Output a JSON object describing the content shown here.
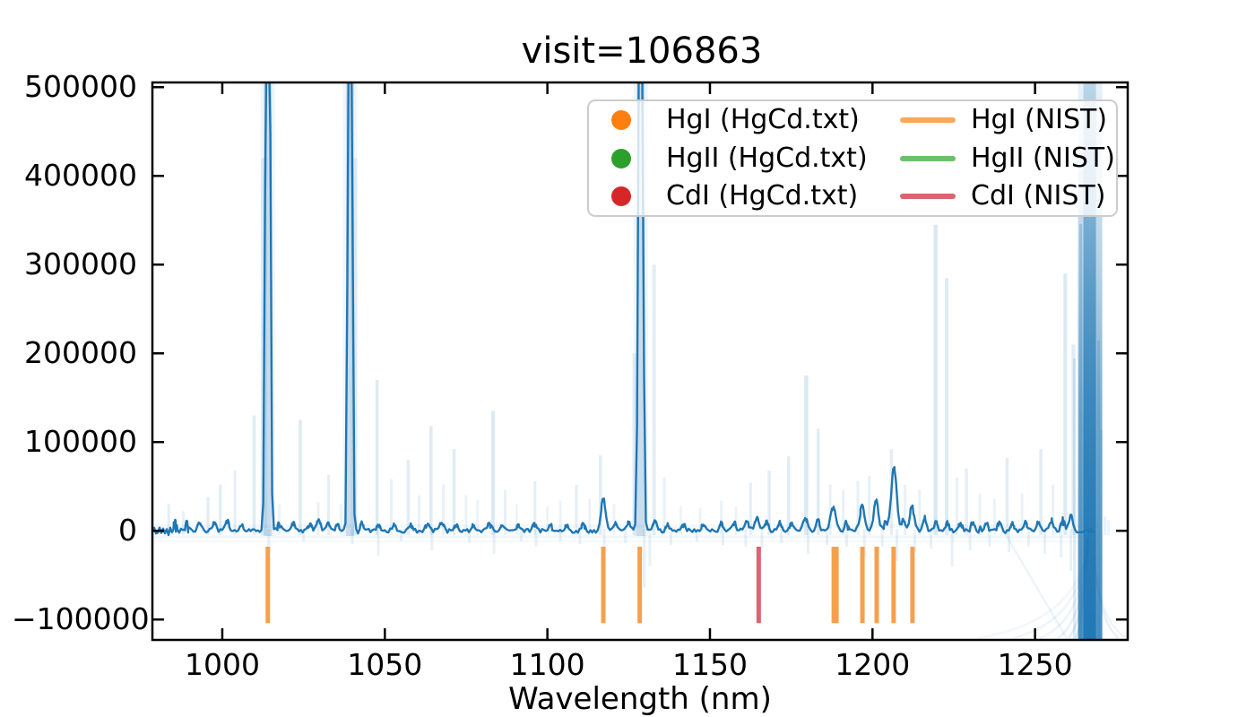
{
  "figure": {
    "kind": "matplotlib-style spectral plot",
    "background": "#ffffff"
  },
  "chart_data": {
    "type": "line",
    "title": "visit=106863",
    "xlabel": "Wavelength (nm)",
    "ylabel": "",
    "xlim": [
      978.5,
      1278.5
    ],
    "ylim": [
      -123000,
      505300
    ],
    "grid": false,
    "legend_position": "upper right",
    "x_ticks": [
      1000,
      1050,
      1100,
      1150,
      1200,
      1250
    ],
    "x_tick_labels": [
      "1000",
      "1050",
      "1100",
      "1150",
      "1200",
      "1250"
    ],
    "y_ticks": [
      500000,
      400000,
      300000,
      200000,
      100000,
      0,
      -100000
    ],
    "y_tick_labels": [
      "500000",
      "400000",
      "300000",
      "200000",
      "100000",
      "0",
      "−100000"
    ],
    "colors": {
      "main_trace": "#1f77b4",
      "faint_trace": "#1f77b4",
      "hgi_nist_line": "#f6a04e",
      "hgii_nist_line": "#6dbf6d",
      "cdi_nist_line": "#dc6470",
      "hgi_hgcd_marker": "#ff7f0e",
      "hgii_hgcd_marker": "#2ca02c",
      "cdi_hgcd_marker": "#d62728",
      "axes": "#000000"
    },
    "strong_lines_nm": [
      1014.0,
      1039.3,
      1128.7
    ],
    "saturated_region": {
      "center_nm": 1266.8,
      "half_width_nm": 3.2
    },
    "main_peaks": [
      [
        1014.0,
        1600000,
        0.5
      ],
      [
        1039.3,
        1600000,
        0.45
      ],
      [
        1128.7,
        1600000,
        0.5
      ],
      [
        985.5,
        9000
      ],
      [
        989,
        7000
      ],
      [
        993,
        8000
      ],
      [
        997.5,
        9500
      ],
      [
        1001.5,
        11000
      ],
      [
        1006,
        7000
      ],
      [
        1017.5,
        8000
      ],
      [
        1021.7,
        9000
      ],
      [
        1027,
        7500
      ],
      [
        1029.6,
        12000
      ],
      [
        1032.5,
        9000
      ],
      [
        1035.5,
        7000
      ],
      [
        1043,
        8000
      ],
      [
        1048,
        7000
      ],
      [
        1053,
        6500
      ],
      [
        1058,
        6000
      ],
      [
        1063,
        7000
      ],
      [
        1067.5,
        9500
      ],
      [
        1072,
        6500
      ],
      [
        1077,
        6000
      ],
      [
        1082,
        7000
      ],
      [
        1086,
        6000
      ],
      [
        1091,
        6500
      ],
      [
        1096,
        7000
      ],
      [
        1101,
        6000
      ],
      [
        1106,
        6500
      ],
      [
        1111,
        7000
      ],
      [
        1117.2,
        36000,
        0.7
      ],
      [
        1121,
        8000
      ],
      [
        1125,
        9000
      ],
      [
        1133,
        11000
      ],
      [
        1137,
        7000
      ],
      [
        1142,
        6500
      ],
      [
        1148,
        7000
      ],
      [
        1153.5,
        8500
      ],
      [
        1157.5,
        9000
      ],
      [
        1161.5,
        12000
      ],
      [
        1164.5,
        14000,
        0.7
      ],
      [
        1167.5,
        10000
      ],
      [
        1171.5,
        9000
      ],
      [
        1175,
        8000
      ],
      [
        1179.3,
        15000,
        0.7
      ],
      [
        1183.2,
        12000
      ],
      [
        1187.9,
        26000,
        0.8
      ],
      [
        1192,
        10000
      ],
      [
        1196.8,
        30000,
        0.7
      ],
      [
        1201.1,
        34000,
        0.7
      ],
      [
        1204,
        9000
      ],
      [
        1206.6,
        72000,
        0.8
      ],
      [
        1209.5,
        12000
      ],
      [
        1212.1,
        28000,
        0.65
      ],
      [
        1216,
        15000
      ],
      [
        1219.5,
        10000
      ],
      [
        1223,
        9000
      ],
      [
        1227,
        8000
      ],
      [
        1231,
        9000
      ],
      [
        1235,
        8000
      ],
      [
        1239,
        9000
      ],
      [
        1243,
        8500
      ],
      [
        1247,
        9000
      ],
      [
        1251,
        10000
      ],
      [
        1255,
        11000
      ],
      [
        1258.5,
        13000
      ],
      [
        1261,
        18000
      ]
    ],
    "faint_spikes": [
      [
        983.5,
        30000,
        0.12,
        3
      ],
      [
        988,
        22000,
        0.1,
        3
      ],
      [
        995.6,
        38000,
        0.14,
        3
      ],
      [
        999.4,
        52000,
        0.14,
        3
      ],
      [
        1003.9,
        68000,
        0.12,
        3
      ],
      [
        1009.8,
        130000,
        0.14,
        3.5
      ],
      [
        1012.9,
        420000,
        0.1,
        7
      ],
      [
        1017.5,
        30000,
        0.09,
        3
      ],
      [
        1024,
        125000,
        0.15,
        3.5
      ],
      [
        1029.5,
        32000,
        0.1,
        3
      ],
      [
        1032.7,
        63000,
        0.12,
        3
      ],
      [
        1036.5,
        30000,
        0.09,
        3
      ],
      [
        1040.5,
        420000,
        0.09,
        7
      ],
      [
        1047.6,
        170000,
        0.15,
        3.5
      ],
      [
        1052,
        58000,
        0.1,
        3
      ],
      [
        1057.2,
        80000,
        0.13,
        3.5
      ],
      [
        1060.5,
        40000,
        0.1,
        3
      ],
      [
        1064.2,
        118000,
        0.15,
        3.5
      ],
      [
        1068,
        52000,
        0.1,
        3
      ],
      [
        1071.3,
        92000,
        0.14,
        3.5
      ],
      [
        1075,
        40000,
        0.09,
        3
      ],
      [
        1078.5,
        35000,
        0.09,
        3
      ],
      [
        1083.3,
        135000,
        0.16,
        4
      ],
      [
        1087,
        46000,
        0.1,
        3
      ],
      [
        1090.5,
        30000,
        0.08,
        3
      ],
      [
        1096.2,
        56000,
        0.12,
        3
      ],
      [
        1100,
        28000,
        0.08,
        3
      ],
      [
        1104,
        34000,
        0.09,
        3
      ],
      [
        1108.9,
        52000,
        0.12,
        3
      ],
      [
        1113,
        36000,
        0.09,
        3
      ],
      [
        1116.3,
        85000,
        0.13,
        3.5
      ],
      [
        1120.5,
        30000,
        0.08,
        3
      ],
      [
        1126.8,
        200000,
        0.1,
        5
      ],
      [
        1132.8,
        300000,
        0.13,
        4
      ],
      [
        1136,
        60000,
        0.1,
        3
      ],
      [
        1141,
        28000,
        0.08,
        3
      ],
      [
        1147,
        26000,
        0.08,
        3
      ],
      [
        1153.5,
        34000,
        0.09,
        3
      ],
      [
        1158,
        28000,
        0.08,
        3
      ],
      [
        1162.5,
        54000,
        0.12,
        3
      ],
      [
        1168.2,
        68000,
        0.13,
        3.5
      ],
      [
        1174.2,
        84000,
        0.13,
        3.5
      ],
      [
        1179.6,
        175000,
        0.16,
        4.5
      ],
      [
        1183.3,
        115000,
        0.14,
        3.5
      ],
      [
        1187,
        52000,
        0.1,
        3
      ],
      [
        1191,
        46000,
        0.1,
        3
      ],
      [
        1195.5,
        56000,
        0.11,
        3
      ],
      [
        1199,
        62000,
        0.11,
        3
      ],
      [
        1205.8,
        92000,
        0.12,
        3.5
      ],
      [
        1210,
        52000,
        0.1,
        3
      ],
      [
        1214.5,
        46000,
        0.1,
        3
      ],
      [
        1219.4,
        345000,
        0.17,
        4.5
      ],
      [
        1222.8,
        285000,
        0.15,
        4
      ],
      [
        1226,
        60000,
        0.1,
        3
      ],
      [
        1228.9,
        70000,
        0.12,
        3.5
      ],
      [
        1233,
        42000,
        0.09,
        3
      ],
      [
        1237.5,
        36000,
        0.09,
        3
      ],
      [
        1241.4,
        82000,
        0.13,
        3.5
      ],
      [
        1246,
        42000,
        0.09,
        3
      ],
      [
        1251.8,
        92000,
        0.13,
        3.5
      ],
      [
        1255.5,
        52000,
        0.1,
        3
      ],
      [
        1259.3,
        290000,
        0.16,
        4
      ],
      [
        1261.8,
        210000,
        0.14,
        4
      ],
      [
        1271.5,
        16000,
        0.1,
        3
      ],
      [
        1272.6,
        12000,
        0.08,
        3
      ]
    ],
    "faint_down_spikes": [
      [
        1014.3,
        -22000
      ],
      [
        1025,
        -12000
      ],
      [
        1040,
        -15000
      ],
      [
        1048,
        -28000
      ],
      [
        1055,
        -12000
      ],
      [
        1064.5,
        -22000
      ],
      [
        1076,
        -14000
      ],
      [
        1083.6,
        -26000
      ],
      [
        1092,
        -12000
      ],
      [
        1096.5,
        -18000
      ],
      [
        1104,
        -12000
      ],
      [
        1110,
        -15000
      ],
      [
        1117.5,
        -20000
      ],
      [
        1124,
        -14000
      ],
      [
        1129.8,
        -64000
      ],
      [
        1131.5,
        -40000
      ],
      [
        1138,
        -16000
      ],
      [
        1146,
        -12000
      ],
      [
        1154,
        -16000
      ],
      [
        1161,
        -18000
      ],
      [
        1166,
        -20000
      ],
      [
        1172,
        -14000
      ],
      [
        1180.2,
        -26000
      ],
      [
        1186,
        -16000
      ],
      [
        1192,
        -18000
      ],
      [
        1197.5,
        -28000
      ],
      [
        1203,
        -18000
      ],
      [
        1207.5,
        -34000
      ],
      [
        1213,
        -24000
      ],
      [
        1218,
        -20000
      ],
      [
        1224.5,
        -40000
      ],
      [
        1230,
        -22000
      ],
      [
        1236,
        -18000
      ],
      [
        1242,
        -24000
      ],
      [
        1248,
        -18000
      ],
      [
        1253,
        -26000
      ],
      [
        1258,
        -30000
      ],
      [
        1261,
        -45000
      ]
    ],
    "reference_lines": {
      "span": {
        "v_top": -18000,
        "v_bottom": -104000
      },
      "HgI_NIST": [
        {
          "wl": 1014.0,
          "w": 5
        },
        {
          "wl": 1117.2,
          "w": 5
        },
        {
          "wl": 1128.4,
          "w": 5
        },
        {
          "wl": 1188.5,
          "w": 8
        },
        {
          "wl": 1196.9,
          "w": 5
        },
        {
          "wl": 1201.3,
          "w": 5
        },
        {
          "wl": 1206.5,
          "w": 5
        },
        {
          "wl": 1212.3,
          "w": 5
        }
      ],
      "HgII_NIST": [],
      "CdI_NIST": [
        {
          "wl": 1165.0,
          "w": 5
        }
      ]
    },
    "legend": {
      "col1": [
        {
          "label": "HgI (HgCd.txt)",
          "marker": "circle",
          "color": "#ff7f0e"
        },
        {
          "label": "HgII (HgCd.txt)",
          "marker": "circle",
          "color": "#2ca02c"
        },
        {
          "label": "CdI (HgCd.txt)",
          "marker": "circle",
          "color": "#d62728"
        }
      ],
      "col2": [
        {
          "label": "HgI (NIST)",
          "marker": "line",
          "color": "#f9a85c"
        },
        {
          "label": "HgII (NIST)",
          "marker": "line",
          "color": "#6dbf6d"
        },
        {
          "label": "CdI (NIST)",
          "marker": "line",
          "color": "#dc6470"
        }
      ]
    }
  }
}
